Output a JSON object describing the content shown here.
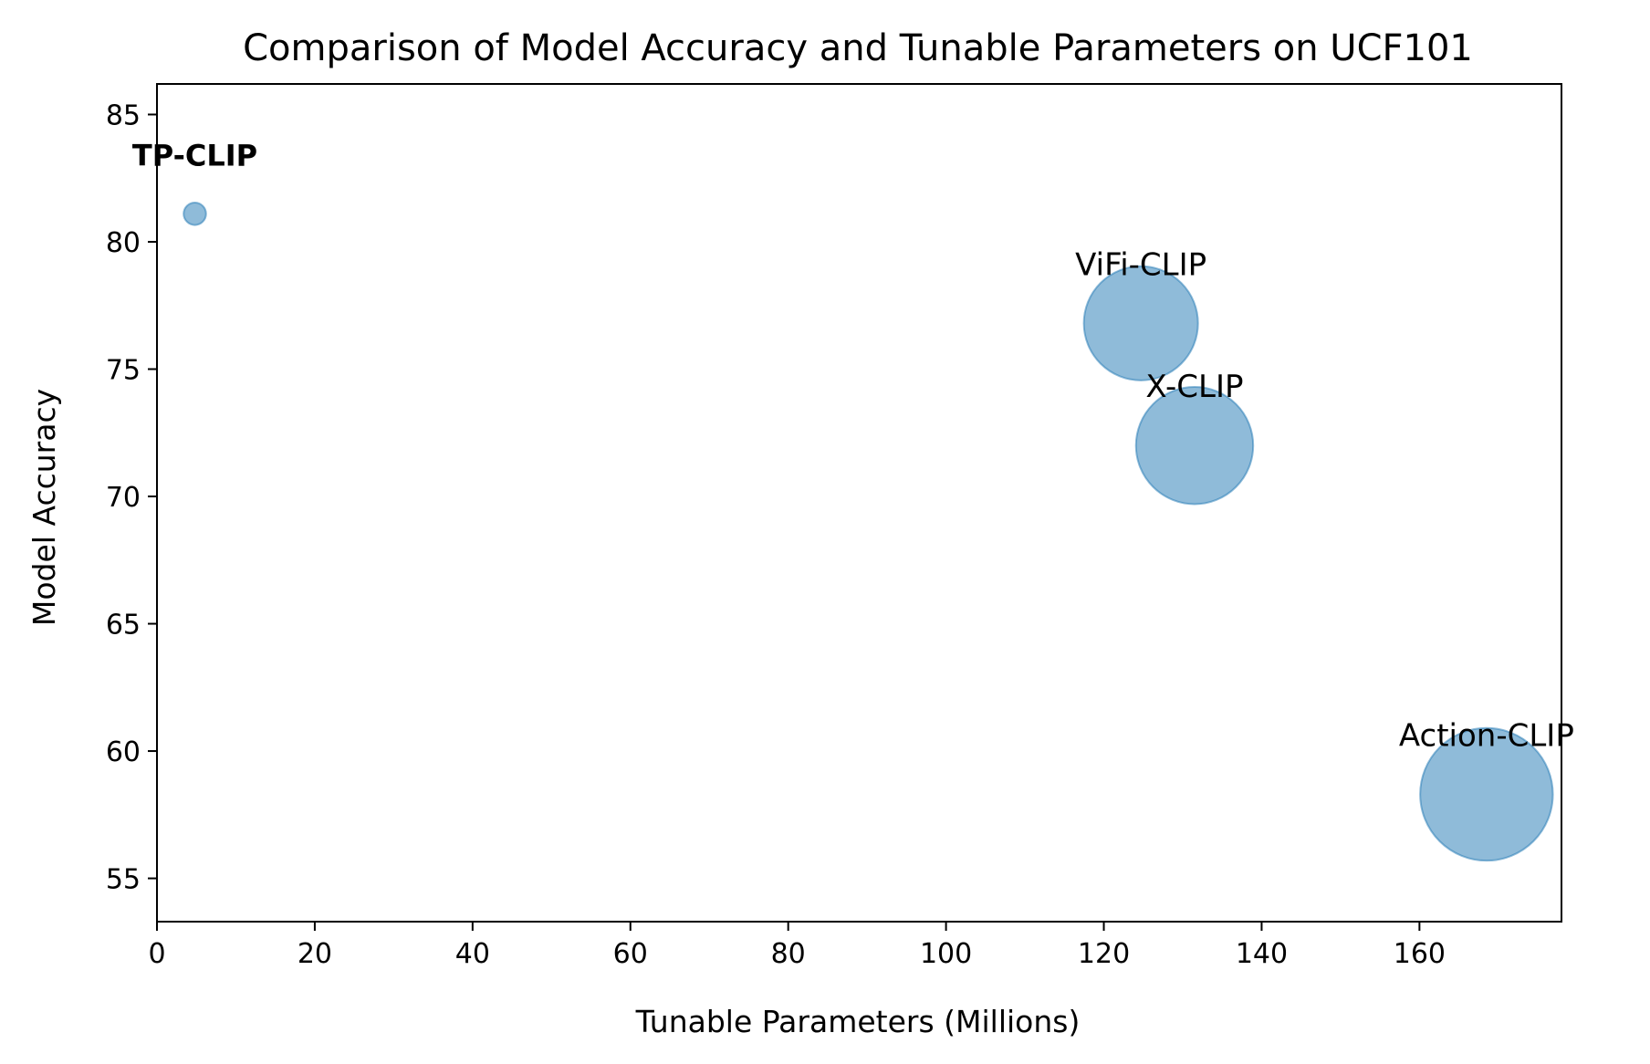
{
  "chart_data": {
    "type": "scatter",
    "title": "Comparison of Model Accuracy and Tunable Parameters on UCF101",
    "xlabel": "Tunable Parameters (Millions)",
    "ylabel": "Model Accuracy",
    "xlim": [
      0,
      178
    ],
    "ylim": [
      53.3,
      86.2
    ],
    "xticks": [
      0,
      20,
      40,
      60,
      80,
      100,
      120,
      140,
      160
    ],
    "yticks": [
      55,
      60,
      65,
      70,
      75,
      80,
      85
    ],
    "grid": false,
    "legend": "none",
    "marker_color": "#1f77b4",
    "marker_alpha": 0.5,
    "highlight_color": "#0000ff",
    "points": [
      {
        "label": "TP-CLIP",
        "x": 4.8,
        "y": 81.1,
        "size": 4.8,
        "highlight": true
      },
      {
        "label": "ViFi-CLIP",
        "x": 124.7,
        "y": 76.8,
        "size": 124.7,
        "highlight": false
      },
      {
        "label": "X-CLIP",
        "x": 131.5,
        "y": 72.0,
        "size": 131.5,
        "highlight": false
      },
      {
        "label": "Action-CLIP",
        "x": 168.5,
        "y": 58.3,
        "size": 168.5,
        "highlight": false
      }
    ]
  }
}
